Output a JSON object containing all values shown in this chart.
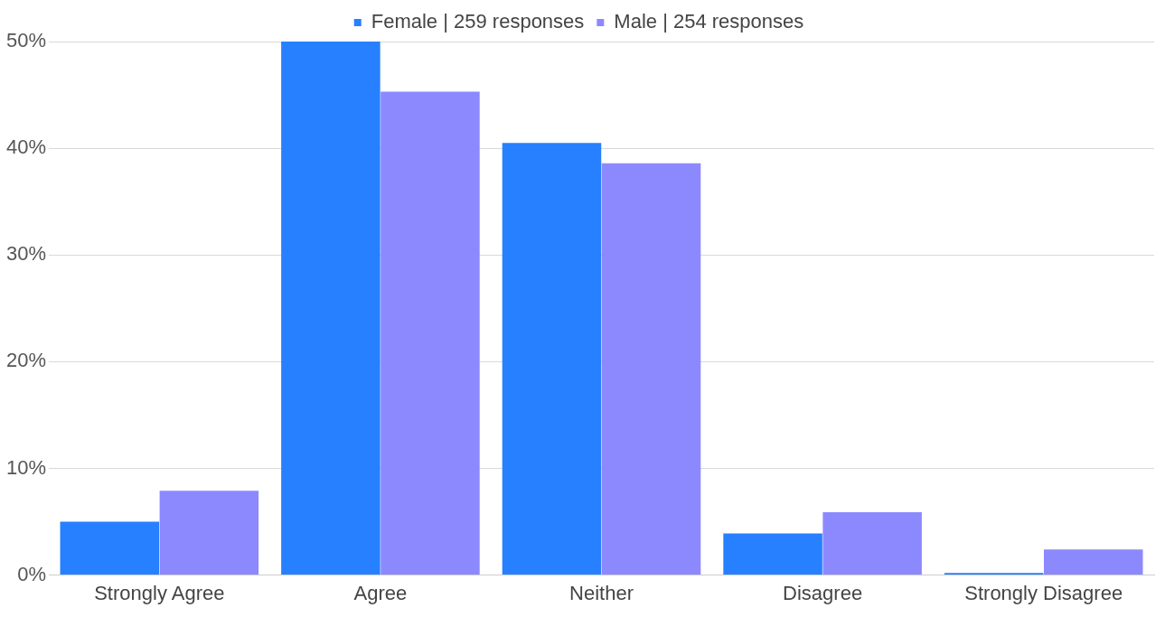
{
  "chart_data": {
    "type": "bar",
    "categories": [
      "Strongly Agree",
      "Agree",
      "Neither",
      "Disagree",
      "Strongly Disagree"
    ],
    "series": [
      {
        "name": "Female | 259 responses",
        "color": "#2680ff",
        "values": [
          5.0,
          50.0,
          40.5,
          3.9,
          0.2
        ]
      },
      {
        "name": "Male | 254 responses",
        "color": "#8c89ff",
        "values": [
          7.9,
          45.3,
          38.6,
          5.9,
          2.4
        ]
      }
    ],
    "ylim": [
      0,
      50
    ],
    "yticks": [
      {
        "value": 0,
        "label": "0%"
      },
      {
        "value": 10,
        "label": "10%"
      },
      {
        "value": 20,
        "label": "20%"
      },
      {
        "value": 30,
        "label": "30%"
      },
      {
        "value": 40,
        "label": "40%"
      },
      {
        "value": 50,
        "label": "50%"
      }
    ],
    "grid": "y",
    "legend": "top"
  }
}
